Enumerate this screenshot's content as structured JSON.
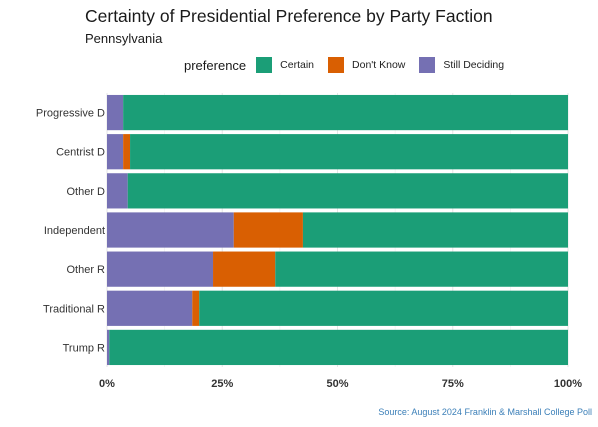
{
  "chart_data": {
    "type": "bar",
    "orientation": "horizontal",
    "stacked": true,
    "title": "Certainty of Presidential Preference by Party Faction",
    "subtitle": "Pennsylvania",
    "legend_title": "preference",
    "legend_position": "top",
    "caption": "Source: August 2024 Franklin & Marshall College Poll",
    "categories": [
      "Progressive D",
      "Centrist D",
      "Other D",
      "Independent",
      "Other R",
      "Traditional R",
      "Trump R"
    ],
    "series": [
      {
        "name": "Still Deciding",
        "color": "#7570b3",
        "values": [
          3.5,
          3.5,
          4.5,
          27.5,
          23,
          18.5,
          0.5
        ]
      },
      {
        "name": "Don't Know",
        "color": "#d95f02",
        "values": [
          0,
          1.5,
          0,
          15,
          13.5,
          1.5,
          0
        ]
      },
      {
        "name": "Certain",
        "color": "#1b9e77",
        "values": [
          96.5,
          95,
          95.5,
          57.5,
          63.5,
          80,
          99.5
        ]
      }
    ],
    "legend_order": [
      "Certain",
      "Don't Know",
      "Still Deciding"
    ],
    "xlim": [
      0,
      100
    ],
    "x_ticks": [
      0,
      25,
      50,
      75,
      100
    ],
    "x_tick_labels": [
      "0%",
      "25%",
      "50%",
      "75%",
      "100%"
    ],
    "grid": true
  }
}
